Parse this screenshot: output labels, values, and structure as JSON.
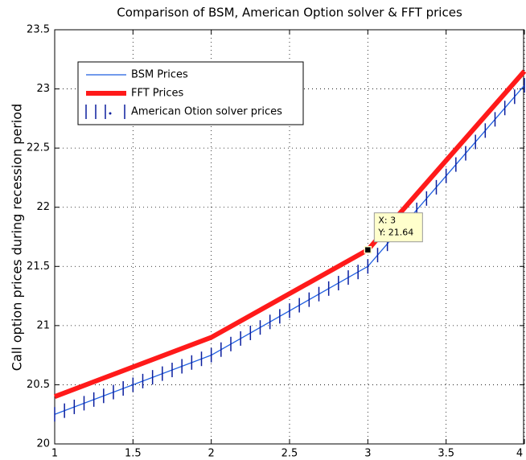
{
  "chart_data": {
    "type": "line",
    "title": "Comparison of BSM, American Option solver & FFT prices",
    "y_label": "Call option prices during recession period",
    "xlim": [
      1,
      4
    ],
    "ylim": [
      20,
      23.5
    ],
    "xticks": [
      1,
      1.5,
      2,
      2.5,
      3,
      3.5,
      4
    ],
    "yticks": [
      20,
      20.5,
      21,
      21.5,
      22,
      22.5,
      23,
      23.5
    ],
    "grid": true,
    "legend": "upper left",
    "series": [
      {
        "name": "BSM Prices",
        "color": "#1e5ee0",
        "style": "line",
        "x": [
          1,
          2,
          3,
          4
        ],
        "values": [
          20.25,
          20.75,
          21.5,
          23.03
        ]
      },
      {
        "name": "FFT Prices",
        "color": "#ff1a1a",
        "style": "thick-line",
        "x": [
          1,
          2,
          3,
          4
        ],
        "values": [
          20.4,
          20.9,
          21.64,
          23.15
        ]
      },
      {
        "name": "American Otion solver prices",
        "color": "#0a1e9e",
        "style": "tick-markers",
        "x": [
          1,
          1.0625,
          1.125,
          1.1875,
          1.25,
          1.3125,
          1.375,
          1.4375,
          1.5,
          1.5625,
          1.625,
          1.6875,
          1.75,
          1.8125,
          1.875,
          1.9375,
          2,
          2.0625,
          2.125,
          2.1875,
          2.25,
          2.3125,
          2.375,
          2.4375,
          2.5,
          2.5625,
          2.625,
          2.6875,
          2.75,
          2.8125,
          2.875,
          2.9375,
          3,
          3.0625,
          3.125,
          3.1875,
          3.25,
          3.3125,
          3.375,
          3.4375,
          3.5,
          3.5625,
          3.625,
          3.6875,
          3.75,
          3.8125,
          3.875,
          3.9375,
          4
        ],
        "values": [
          20.25,
          20.281,
          20.313,
          20.344,
          20.375,
          20.406,
          20.438,
          20.469,
          20.5,
          20.531,
          20.563,
          20.594,
          20.625,
          20.656,
          20.688,
          20.719,
          20.75,
          20.797,
          20.844,
          20.891,
          20.938,
          20.984,
          21.031,
          21.078,
          21.125,
          21.172,
          21.219,
          21.266,
          21.313,
          21.359,
          21.406,
          21.453,
          21.5,
          21.596,
          21.691,
          21.787,
          21.883,
          21.978,
          22.074,
          22.169,
          22.265,
          22.361,
          22.456,
          22.552,
          22.648,
          22.743,
          22.839,
          22.934,
          23.03
        ]
      }
    ],
    "datatip": {
      "x": 3,
      "y": 21.64,
      "x_text": "X: 3",
      "y_text": "Y: 21.64"
    }
  }
}
